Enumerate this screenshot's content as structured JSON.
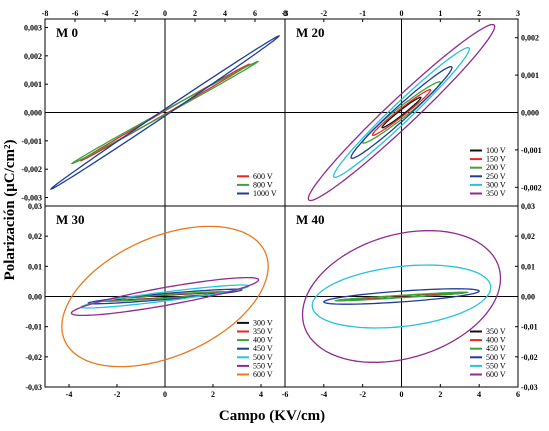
{
  "figure": {
    "xlabel": "Campo (KV/cm)",
    "ylabel": "Polarización (μC/cm²)"
  },
  "chart_data": [
    {
      "type": "line",
      "panel": "top-left",
      "title": "M 0",
      "xlim": [
        -8,
        8
      ],
      "ylim": [
        -0.0033,
        0.0033
      ],
      "xticks": [
        -8,
        -6,
        -4,
        -2,
        0,
        2,
        4,
        6,
        8
      ],
      "yticks": [
        -0.003,
        -0.002,
        -0.001,
        0.0,
        0.001,
        0.002,
        0.003
      ],
      "ytick_labels": [
        "-0,003",
        "-0,002",
        "-0,001",
        "0,000",
        "0,001",
        "0,002",
        "0,003"
      ],
      "xtick_position": "top",
      "ytick_position": "left",
      "legend_position": "bottom-right",
      "series": [
        {
          "name": "600 V",
          "color": "#e8272b",
          "emax": 5.6,
          "pmax": 0.0017,
          "pr": 6e-05
        },
        {
          "name": "800 V",
          "color": "#3aa43a",
          "emax": 6.2,
          "pmax": 0.0018,
          "pr": 8e-05
        },
        {
          "name": "1000 V",
          "color": "#1f3c9a",
          "emax": 7.6,
          "pmax": 0.0027,
          "pr": 0.00012
        }
      ]
    },
    {
      "type": "line",
      "panel": "top-right",
      "title": "M 20",
      "xlim": [
        -3,
        3
      ],
      "ylim": [
        -0.0025,
        0.0025
      ],
      "xticks": [
        -3,
        -2,
        -1,
        0,
        1,
        2,
        3
      ],
      "yticks": [
        -0.002,
        -0.001,
        0.0,
        0.001,
        0.002
      ],
      "ytick_labels": [
        "-0,002",
        "-0,001",
        "0,000",
        "0,001",
        "0,002"
      ],
      "xtick_position": "top",
      "ytick_position": "right",
      "legend_position": "bottom-right",
      "series": [
        {
          "name": "100 V",
          "color": "#111111",
          "emax": 0.5,
          "pmax": 0.0004,
          "pr": 8e-05
        },
        {
          "name": "150 V",
          "color": "#e8272b",
          "emax": 0.75,
          "pmax": 0.0006,
          "pr": 0.00012
        },
        {
          "name": "200 V",
          "color": "#3aa43a",
          "emax": 1.0,
          "pmax": 0.0008,
          "pr": 0.00018
        },
        {
          "name": "250 V",
          "color": "#1f3c9a",
          "emax": 1.3,
          "pmax": 0.0012,
          "pr": 0.00025
        },
        {
          "name": "300 V",
          "color": "#29c3d8",
          "emax": 1.75,
          "pmax": 0.0017,
          "pr": 0.00035
        },
        {
          "name": "350 V",
          "color": "#8e2c8f",
          "emax": 2.4,
          "pmax": 0.0023,
          "pr": 0.0005
        }
      ]
    },
    {
      "type": "line",
      "panel": "bottom-left",
      "title": "M 30",
      "xlim": [
        -5,
        5
      ],
      "ylim": [
        -0.03,
        0.03
      ],
      "xticks": [
        -4,
        -2,
        0,
        2,
        4
      ],
      "yticks": [
        -0.03,
        -0.02,
        -0.01,
        0.0,
        0.01,
        0.02,
        0.03
      ],
      "ytick_labels": [
        "-0,03",
        "-0,02",
        "-0,01",
        "0,00",
        "0,01",
        "0,02",
        "0,03"
      ],
      "xtick_position": "bottom",
      "ytick_position": "left",
      "legend_position": "bottom-right",
      "series": [
        {
          "name": "300 V",
          "color": "#111111",
          "emax": 2.4,
          "pmax": 0.0012,
          "pr": 0.0004
        },
        {
          "name": "350 V",
          "color": "#e8272b",
          "emax": 2.5,
          "pmax": 0.0013,
          "pr": 0.0005
        },
        {
          "name": "400 V",
          "color": "#3aa43a",
          "emax": 2.7,
          "pmax": 0.0015,
          "pr": 0.0006
        },
        {
          "name": "450 V",
          "color": "#1f3c9a",
          "emax": 3.2,
          "pmax": 0.0022,
          "pr": 0.001
        },
        {
          "name": "500 V",
          "color": "#29c3d8",
          "emax": 3.5,
          "pmax": 0.0035,
          "pr": 0.0015
        },
        {
          "name": "550 V",
          "color": "#8e2c8f",
          "emax": 3.9,
          "pmax": 0.0055,
          "pr": 0.003
        },
        {
          "name": "600 V",
          "color": "#e8791e",
          "emax": 4.3,
          "pmax": 0.01,
          "pr": 0.021
        }
      ]
    },
    {
      "type": "line",
      "panel": "bottom-right",
      "title": "M 40",
      "xlim": [
        -6,
        6
      ],
      "ylim": [
        -0.03,
        0.03
      ],
      "xticks": [
        -6,
        -4,
        -2,
        0,
        2,
        4,
        6
      ],
      "yticks": [
        -0.03,
        -0.02,
        -0.01,
        0.0,
        0.01,
        0.02,
        0.03
      ],
      "ytick_labels": [
        "-0,03",
        "-0,02",
        "-0,01",
        "0,00",
        "0,01",
        "0,02",
        "0,03"
      ],
      "xtick_position": "bottom",
      "ytick_position": "right",
      "legend_position": "bottom-right",
      "series": [
        {
          "name": "350 V",
          "color": "#111111",
          "emax": 3.2,
          "pmax": 0.0012,
          "pr": 0.0003
        },
        {
          "name": "400 V",
          "color": "#e8272b",
          "emax": 3.3,
          "pmax": 0.0013,
          "pr": 0.0003
        },
        {
          "name": "450 V",
          "color": "#3aa43a",
          "emax": 3.4,
          "pmax": 0.0014,
          "pr": 0.0004
        },
        {
          "name": "500 V",
          "color": "#1f3c9a",
          "emax": 4.0,
          "pmax": 0.0018,
          "pr": 0.0018
        },
        {
          "name": "550 V",
          "color": "#29c3d8",
          "emax": 4.6,
          "pmax": 0.003,
          "pr": 0.01
        },
        {
          "name": "600 V",
          "color": "#8e2c8f",
          "emax": 5.1,
          "pmax": 0.006,
          "pr": 0.021
        }
      ]
    }
  ]
}
